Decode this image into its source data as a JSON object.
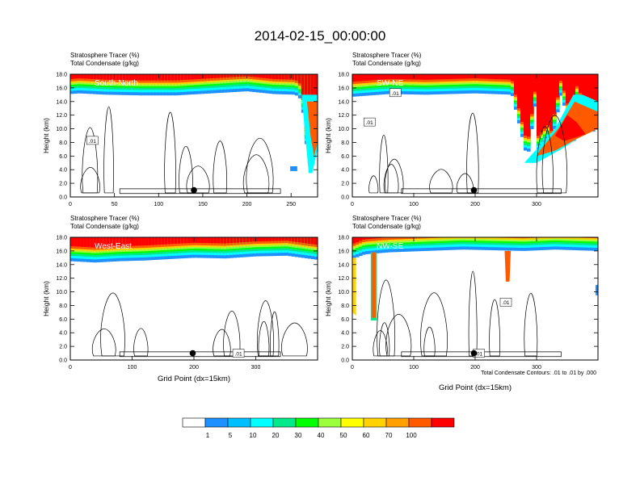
{
  "figure": {
    "title": "2014-02-15_00:00:00",
    "footnote": "Total Condensate Contours: .01 to .01 by .000"
  },
  "colorbar": {
    "colors": [
      "#ffffff",
      "#1e90ff",
      "#00bfff",
      "#00ffff",
      "#00e98a",
      "#00ff00",
      "#9cff3d",
      "#ffff00",
      "#ffd200",
      "#ff9f00",
      "#ff5a00",
      "#ff0000"
    ],
    "labels": [
      "1",
      "5",
      "10",
      "20",
      "30",
      "40",
      "50",
      "60",
      "70",
      "100"
    ]
  },
  "chart_data": [
    {
      "type": "heatmap",
      "panel_label": "South-North",
      "subtitle_1": "Stratosphere Tracer   (%)",
      "subtitle_2": "Total Condensate   (g/kg)",
      "ylabel": "Height (km)",
      "xlabel": "",
      "xlim": [
        0,
        280
      ],
      "ylim": [
        0,
        18
      ],
      "x_ticks": [
        "0",
        "50",
        "100",
        "150",
        "200",
        "250"
      ],
      "x_tick_values": [
        0,
        50,
        100,
        150,
        200,
        250
      ],
      "y_ticks": [
        "0.0",
        "2.0",
        "4.0",
        "6.0",
        "8.0",
        "10.0",
        "12.0",
        "14.0",
        "16.0",
        "18.0"
      ],
      "tropopause_km": [
        [
          0,
          15.1
        ],
        [
          10,
          15.2
        ],
        [
          40,
          15.0
        ],
        [
          80,
          14.9
        ],
        [
          120,
          14.9
        ],
        [
          160,
          15.2
        ],
        [
          200,
          15.5
        ],
        [
          230,
          15.1
        ],
        [
          255,
          15.0
        ],
        [
          262,
          14.2
        ],
        [
          266,
          9.0
        ],
        [
          270,
          4.5
        ],
        [
          274,
          6.0
        ],
        [
          280,
          7.2
        ]
      ],
      "marker_x": 140,
      "marker_y": 1.0,
      "contour_labels": [
        {
          "text": ".01",
          "x": 25,
          "y": 8.3
        }
      ]
    },
    {
      "type": "heatmap",
      "panel_label": "SW-NE",
      "subtitle_1": "Stratosphere Tracer   (%)",
      "subtitle_2": "Total Condensate   (g/kg)",
      "ylabel": "Height (km)",
      "xlabel": "",
      "xlim": [
        0,
        400
      ],
      "ylim": [
        0,
        18
      ],
      "x_ticks": [
        "0",
        "100",
        "200",
        "300"
      ],
      "x_tick_values": [
        0,
        100,
        200,
        300
      ],
      "y_ticks": [
        "0.0",
        "2.0",
        "4.0",
        "6.0",
        "8.0",
        "10.0",
        "12.0",
        "14.0",
        "16.0",
        "18.0"
      ],
      "tropopause_km": [
        [
          0,
          14.7
        ],
        [
          60,
          15.1
        ],
        [
          120,
          15.0
        ],
        [
          200,
          15.2
        ],
        [
          260,
          15.0
        ],
        [
          300,
          14.9
        ],
        [
          340,
          15.1
        ],
        [
          365,
          14.2
        ],
        [
          350,
          11.5
        ],
        [
          320,
          8.5
        ],
        [
          300,
          6.5
        ],
        [
          285,
          5.5
        ],
        [
          320,
          5.8
        ],
        [
          360,
          7.5
        ],
        [
          390,
          9.5
        ],
        [
          400,
          10.0
        ]
      ],
      "marker_x": 198,
      "marker_y": 1.0,
      "contour_labels": [
        {
          "text": ".01",
          "x": 28,
          "y": 11.0
        },
        {
          "text": ".01",
          "x": 70,
          "y": 15.3
        }
      ]
    },
    {
      "type": "heatmap",
      "panel_label": "West-East",
      "subtitle_1": "Stratosphere Tracer   (%)",
      "subtitle_2": "Total Condensate   (g/kg)",
      "ylabel": "Height (km)",
      "xlabel": "Grid Point (dx=15km)",
      "xlim": [
        0,
        400
      ],
      "ylim": [
        0,
        18
      ],
      "x_ticks": [
        "0",
        "100",
        "200",
        "300"
      ],
      "x_tick_values": [
        0,
        100,
        200,
        300
      ],
      "y_ticks": [
        "0.0",
        "2.0",
        "4.0",
        "6.0",
        "8.0",
        "10.0",
        "12.0",
        "14.0",
        "16.0",
        "18.0"
      ],
      "tropopause_km": [
        [
          0,
          14.5
        ],
        [
          40,
          14.3
        ],
        [
          80,
          14.5
        ],
        [
          120,
          14.6
        ],
        [
          160,
          14.8
        ],
        [
          200,
          15.0
        ],
        [
          250,
          14.9
        ],
        [
          300,
          15.2
        ],
        [
          350,
          15.3
        ],
        [
          400,
          14.7
        ]
      ],
      "marker_x": 198,
      "marker_y": 1.0,
      "contour_labels": [
        {
          "text": ".01",
          "x": 272,
          "y": 1.0
        }
      ]
    },
    {
      "type": "heatmap",
      "panel_label": "NW-SE",
      "subtitle_1": "Stratosphere Tracer   (%)",
      "subtitle_2": "Total Condensate   (g/kg)",
      "ylabel": "Height (km)",
      "xlabel": "Grid Point (dx=15km)",
      "xlim": [
        0,
        400
      ],
      "ylim": [
        0,
        18
      ],
      "x_ticks": [
        "0",
        "100",
        "200",
        "300"
      ],
      "x_tick_values": [
        0,
        100,
        200,
        300
      ],
      "y_ticks": [
        "0.0",
        "2.0",
        "4.0",
        "6.0",
        "8.0",
        "10.0",
        "12.0",
        "14.0",
        "16.0",
        "18.0"
      ],
      "tropopause_km": [
        [
          0,
          14.8
        ],
        [
          20,
          15.5
        ],
        [
          60,
          15.8
        ],
        [
          120,
          16.0
        ],
        [
          180,
          16.2
        ],
        [
          230,
          16.1
        ],
        [
          280,
          16.0
        ],
        [
          330,
          16.2
        ],
        [
          400,
          16.0
        ]
      ],
      "marker_x": 198,
      "marker_y": 1.0,
      "contour_labels": [
        {
          "text": ".01",
          "x": 250,
          "y": 8.5
        },
        {
          "text": ".01",
          "x": 206,
          "y": 1.0
        }
      ]
    }
  ]
}
